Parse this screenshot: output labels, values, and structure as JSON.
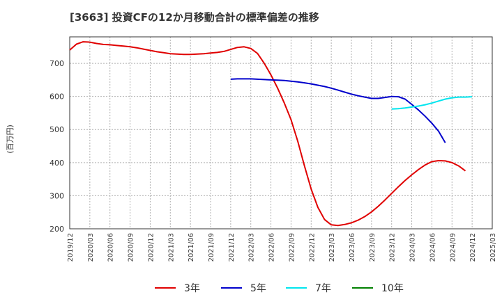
{
  "chart_data": {
    "type": "line",
    "title": "[3663]  投資CFの12か月移動合計の標準偏差の推移",
    "ylabel": "(百万円)",
    "xlabel": "",
    "ylim": [
      200,
      780
    ],
    "yticks": [
      200,
      300,
      400,
      500,
      600,
      700
    ],
    "grid": true,
    "legend_position": "bottom",
    "x_ticks": [
      "2019/12",
      "2020/03",
      "2020/06",
      "2020/09",
      "2020/12",
      "2021/03",
      "2021/06",
      "2021/09",
      "2021/12",
      "2022/03",
      "2022/06",
      "2022/09",
      "2022/12",
      "2023/03",
      "2023/06",
      "2023/09",
      "2023/12",
      "2024/03",
      "2024/06",
      "2024/09",
      "2024/12",
      "2025/03"
    ],
    "x_months": [
      "2019/12",
      "2020/01",
      "2020/02",
      "2020/03",
      "2020/04",
      "2020/05",
      "2020/06",
      "2020/07",
      "2020/08",
      "2020/09",
      "2020/10",
      "2020/11",
      "2020/12",
      "2021/01",
      "2021/02",
      "2021/03",
      "2021/04",
      "2021/05",
      "2021/06",
      "2021/07",
      "2021/08",
      "2021/09",
      "2021/10",
      "2021/11",
      "2021/12",
      "2022/01",
      "2022/02",
      "2022/03",
      "2022/04",
      "2022/05",
      "2022/06",
      "2022/07",
      "2022/08",
      "2022/09",
      "2022/10",
      "2022/11",
      "2022/12",
      "2023/01",
      "2023/02",
      "2023/03",
      "2023/04",
      "2023/05",
      "2023/06",
      "2023/07",
      "2023/08",
      "2023/09",
      "2023/10",
      "2023/11",
      "2023/12",
      "2024/01",
      "2024/02",
      "2024/03",
      "2024/04",
      "2024/05",
      "2024/06",
      "2024/07",
      "2024/08",
      "2024/09",
      "2024/10",
      "2024/11",
      "2024/12"
    ],
    "series": [
      {
        "name": "3年",
        "color": "#e00000",
        "start_index": 0,
        "values": [
          740,
          758,
          765,
          764,
          760,
          757,
          756,
          754,
          752,
          750,
          747,
          743,
          739,
          735,
          732,
          729,
          728,
          727,
          727,
          728,
          729,
          731,
          733,
          736,
          742,
          748,
          750,
          745,
          730,
          700,
          665,
          625,
          580,
          530,
          465,
          390,
          320,
          265,
          228,
          212,
          210,
          213,
          218,
          226,
          237,
          251,
          268,
          287,
          307,
          327,
          346,
          363,
          379,
          393,
          403,
          406,
          405,
          400,
          390,
          375
        ]
      },
      {
        "name": "5年",
        "color": "#0000cc",
        "start_index": 24,
        "values": [
          652,
          653,
          653,
          653,
          652,
          651,
          650,
          649,
          648,
          646,
          644,
          641,
          638,
          634,
          630,
          625,
          619,
          613,
          607,
          602,
          598,
          594,
          594,
          597,
          600,
          599,
          592,
          576,
          559,
          540,
          519,
          495,
          460
        ]
      },
      {
        "name": "7年",
        "color": "#00e5ee",
        "start_index": 48,
        "values": [
          562,
          563,
          565,
          568,
          571,
          575,
          580,
          586,
          592,
          596,
          598,
          598,
          599
        ]
      },
      {
        "name": "10年",
        "color": "#008000",
        "start_index": 0,
        "values": []
      }
    ]
  }
}
